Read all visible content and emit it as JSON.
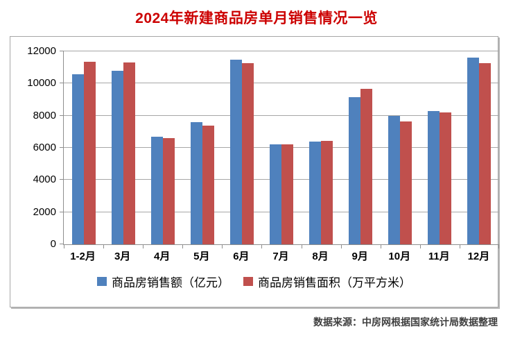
{
  "title": "2024年新建商品房单月销售情况一览",
  "footer": {
    "source": "数据来源：中房网根据国家统计局数据整理"
  },
  "colors": {
    "title_text": "#cc0000",
    "sales_amount": "#4f81bd",
    "sales_area": "#c0504d",
    "gridline": "#a6a6a6",
    "axis": "#8e8e8e",
    "footer_text": "#3f3f3f"
  },
  "chart_data": {
    "type": "bar",
    "categories": [
      "1-2月",
      "3月",
      "4月",
      "5月",
      "6月",
      "7月",
      "8月",
      "9月",
      "10月",
      "11月",
      "12月"
    ],
    "series": [
      {
        "key": "sales-amount",
        "name": "商品房销售额（亿元）",
        "color_key": "sales_amount",
        "values": [
          10566,
          10789,
          6712,
          7598,
          11468,
          6197,
          6393,
          9157,
          7975,
          8270,
          11625
        ]
      },
      {
        "key": "sales-area",
        "name": "商品房销售面积（万平方米）",
        "color_key": "sales_area",
        "values": [
          11369,
          11299,
          6584,
          7390,
          11274,
          6233,
          6453,
          9682,
          7646,
          8188,
          11267
        ]
      }
    ],
    "ylim": [
      0,
      12000
    ],
    "yticks": [
      0,
      2000,
      4000,
      6000,
      8000,
      10000,
      12000
    ],
    "grid": true,
    "legend_position": "bottom"
  }
}
